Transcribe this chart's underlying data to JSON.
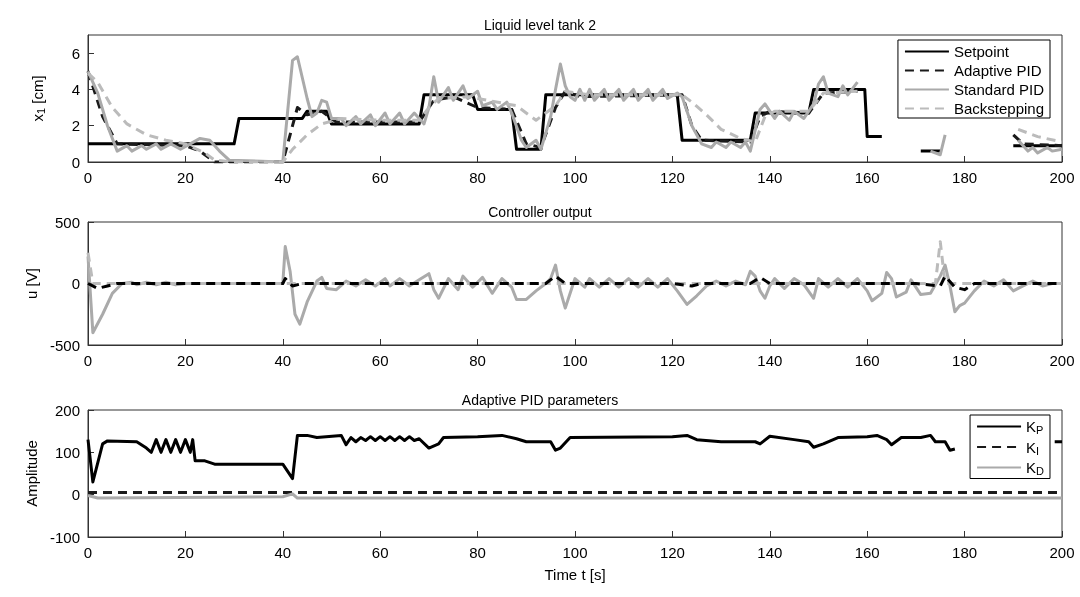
{
  "chart_data": [
    {
      "type": "line",
      "title": "Liquid level tank 2",
      "ylabel": "x$_{1}$ [cm]",
      "xlim": [
        0,
        200
      ],
      "xticks": [
        0,
        20,
        40,
        60,
        80,
        100,
        120,
        140,
        160,
        180,
        200
      ],
      "ylim": [
        0,
        7
      ],
      "yticks": [
        0,
        2,
        4,
        6
      ],
      "legend": "top right",
      "marker": "none",
      "series": [
        {
          "name": "Setpoint",
          "color": "#000000",
          "line_style": "solid",
          "x": [
            0,
            30,
            31,
            44,
            45,
            49,
            50,
            68,
            69,
            79,
            80,
            87,
            88,
            93,
            94,
            121,
            122,
            136,
            137,
            148,
            149,
            159.5,
            160,
            163,
            164,
            170,
            171,
            175,
            176,
            189,
            190,
            200
          ],
          "values": [
            1,
            1,
            2.4,
            2.4,
            2.8,
            2.8,
            2.1,
            2.1,
            3.7,
            3.7,
            2.9,
            2.9,
            0.7,
            0.7,
            3.7,
            3.7,
            1.2,
            1.2,
            2.7,
            2.7,
            4,
            4,
            1.4,
            1.4,
            null,
            null,
            0.6,
            0.6,
            null,
            null,
            0.9,
            0.9
          ]
        },
        {
          "name": "Adaptive PID",
          "color": "#1a1a1a",
          "line_style": "dashed",
          "x": [
            0,
            3,
            6,
            20,
            23,
            26,
            40,
            42,
            43,
            45,
            48,
            51,
            68,
            71,
            75,
            80,
            87,
            90,
            93,
            96,
            98,
            101,
            122,
            124,
            126,
            136,
            138,
            140,
            148,
            151,
            158,
            159,
            190,
            192,
            200
          ],
          "values": [
            5,
            2.5,
            1,
            0.9,
            0.6,
            0,
            0,
            2,
            3,
            2.6,
            2.8,
            2.2,
            2.2,
            3.4,
            3.6,
            3,
            2.9,
            1,
            0.8,
            3,
            3.9,
            3.6,
            3.7,
            2,
            1.2,
            1.1,
            2.5,
            2.8,
            2.7,
            3.8,
            3.9,
            null,
            1.5,
            1,
            0.9
          ]
        },
        {
          "name": "Standard PID",
          "color": "#aaaaaa",
          "line_style": "solid",
          "x": [
            0,
            2,
            4,
            6,
            8,
            9,
            11,
            12,
            14,
            15,
            17,
            19,
            21,
            23,
            25,
            27,
            29,
            40,
            42,
            43,
            45,
            46,
            47,
            48,
            49,
            50,
            52,
            53,
            55,
            56,
            58,
            59,
            61,
            62,
            64,
            65,
            67,
            69,
            70,
            71,
            72,
            74,
            75,
            77,
            78,
            80,
            81,
            83,
            84,
            86,
            87,
            89,
            90,
            92,
            93,
            95,
            96,
            97,
            98,
            99,
            100,
            101,
            102,
            103,
            104,
            106,
            107,
            109,
            110,
            112,
            113,
            115,
            116,
            118,
            119,
            121,
            122,
            124,
            126,
            128,
            129,
            131,
            132,
            134,
            135,
            136,
            138,
            139,
            141,
            142,
            144,
            145,
            147,
            149,
            150,
            151,
            152,
            154,
            155,
            156,
            158,
            159,
            173,
            175,
            176,
            177,
            191,
            193,
            194,
            195,
            197,
            198,
            200
          ],
          "values": [
            5,
            3.8,
            2,
            0.6,
            0.9,
            0.6,
            0.9,
            0.7,
            1,
            0.7,
            1,
            0.7,
            1,
            1.3,
            1.2,
            0.6,
            0.1,
            0,
            5.6,
            5.8,
            3.5,
            2.5,
            2.7,
            3.4,
            3.3,
            2.4,
            2.4,
            2,
            2.5,
            2.1,
            2.6,
            2,
            2.7,
            2.1,
            2.7,
            2.1,
            2.7,
            2.1,
            3,
            4.7,
            3.3,
            4.1,
            3.4,
            4.2,
            3.5,
            3.9,
            3.1,
            3.3,
            2.9,
            3.3,
            2.7,
            1.2,
            0.8,
            1.2,
            0.7,
            2.5,
            4,
            5.4,
            4.2,
            3.6,
            3.4,
            4,
            3.4,
            4,
            3.4,
            4,
            3.4,
            4,
            3.4,
            4,
            3.4,
            4,
            3.4,
            4,
            3.5,
            3.8,
            3.6,
            2,
            1,
            0.8,
            1.1,
            0.8,
            1.1,
            0.8,
            1.1,
            0.6,
            2.9,
            3.2,
            2.4,
            2.8,
            2.3,
            2.8,
            2.4,
            3.2,
            4.3,
            4.7,
            3.8,
            3.6,
            4.2,
            3.7,
            4.4,
            null,
            0.6,
            0.4,
            1.5,
            null,
            1.2,
            0.6,
            0.8,
            0.5,
            0.8,
            0.6,
            0.7
          ]
        },
        {
          "name": "Backstepping",
          "color": "#bbbbbb",
          "line_style": "dashed",
          "x": [
            0,
            2,
            5,
            8,
            12,
            16,
            20,
            24,
            26,
            30,
            40,
            42,
            45,
            48,
            52,
            60,
            68,
            70,
            72,
            78,
            82,
            88,
            92,
            96,
            98,
            103,
            122,
            124,
            127,
            130,
            134,
            137,
            139,
            141,
            148,
            151,
            158,
            159,
            191,
            195,
            200
          ],
          "values": [
            4.9,
            4.4,
            3,
            2.1,
            1.5,
            1.2,
            1,
            0.5,
            0.1,
            0,
            0,
            0.7,
            1.5,
            2.1,
            2.4,
            2.3,
            2.3,
            3,
            3.5,
            3.6,
            3.4,
            3.1,
            2.3,
            3.1,
            3.9,
            3.7,
            3.7,
            3.3,
            2.6,
            1.8,
            1.3,
            1.1,
            2.5,
            2.8,
            2.8,
            3.8,
            3.9,
            null,
            1.8,
            1.4,
            1.1
          ]
        }
      ]
    },
    {
      "type": "line",
      "title": "Controller output",
      "ylabel": "u [V]",
      "xlim": [
        0,
        200
      ],
      "xticks": [
        0,
        20,
        40,
        60,
        80,
        100,
        120,
        140,
        160,
        180,
        200
      ],
      "ylim": [
        -500,
        500
      ],
      "yticks": [
        -500,
        0,
        500
      ],
      "marker": "none",
      "series": [
        {
          "color": "#aaaaaa",
          "line_style": "solid",
          "x": [
            0,
            1,
            3,
            5,
            7,
            9,
            10,
            12,
            14,
            16,
            18,
            20,
            40,
            40.5,
            41.5,
            42.5,
            43.5,
            45,
            47,
            48,
            49,
            51,
            53,
            55,
            57,
            59,
            61,
            62,
            64,
            66,
            68,
            70,
            71,
            72,
            74,
            76,
            77,
            79,
            81,
            83,
            85,
            87,
            88,
            90,
            92,
            94,
            95,
            96,
            97,
            98,
            99,
            100,
            102,
            103,
            105,
            107,
            109,
            111,
            113,
            115,
            117,
            119,
            121,
            123,
            125,
            127,
            129,
            131,
            133,
            135,
            136,
            137,
            138,
            139,
            140,
            141,
            143,
            145,
            147,
            149,
            150,
            152,
            154,
            156,
            158,
            160,
            161,
            163,
            164,
            165,
            166,
            168,
            169,
            171,
            173,
            175,
            176,
            177,
            178,
            179,
            180,
            182,
            184,
            186,
            188,
            190,
            192,
            194,
            196,
            198,
            200
          ],
          "values": [
            220,
            -400,
            -250,
            -80,
            0,
            10,
            -10,
            10,
            -10,
            10,
            -10,
            0,
            0,
            300,
            100,
            -250,
            -330,
            -150,
            20,
            50,
            -40,
            -50,
            20,
            -20,
            30,
            -20,
            40,
            -20,
            40,
            -20,
            30,
            80,
            -50,
            -120,
            40,
            -50,
            60,
            -30,
            50,
            -80,
            40,
            -30,
            -130,
            -130,
            -60,
            0,
            40,
            150,
            -60,
            -200,
            -80,
            40,
            -30,
            40,
            -30,
            40,
            -30,
            40,
            -30,
            40,
            -30,
            40,
            -60,
            -170,
            -100,
            -20,
            20,
            -20,
            20,
            -10,
            100,
            60,
            -60,
            -120,
            -20,
            40,
            -40,
            40,
            -10,
            -120,
            40,
            -30,
            40,
            -30,
            40,
            -60,
            -140,
            -80,
            90,
            40,
            -110,
            -70,
            30,
            -90,
            -80,
            60,
            150,
            -20,
            -230,
            -180,
            -160,
            -60,
            20,
            -20,
            30,
            -60,
            -20,
            20,
            -20,
            0,
            0
          ]
        },
        {
          "color": "#bbbbbb",
          "line_style": "dashed",
          "x": [
            0,
            1,
            40,
            174,
            175,
            176,
            200
          ],
          "values": [
            250,
            0,
            0,
            0,
            340,
            0,
            0
          ]
        },
        {
          "color": "#000000",
          "line_style": "dashed",
          "x": [
            0,
            2,
            4,
            6,
            40,
            40.5,
            42,
            44,
            60,
            94,
            96,
            98,
            120,
            124,
            126,
            136,
            138,
            140,
            170,
            175,
            176,
            178,
            180,
            182,
            200
          ],
          "values": [
            0,
            -40,
            -20,
            0,
            0,
            40,
            -20,
            0,
            0,
            0,
            60,
            0,
            0,
            -20,
            0,
            0,
            50,
            0,
            0,
            -20,
            60,
            -30,
            -50,
            0,
            0
          ]
        }
      ]
    },
    {
      "type": "line",
      "title": "Adaptive PID parameters",
      "xlabel": "Time t [s]",
      "ylabel": "Amplitude",
      "xlim": [
        0,
        200
      ],
      "xticks": [
        0,
        20,
        40,
        60,
        80,
        100,
        120,
        140,
        160,
        180,
        200
      ],
      "ylim": [
        -100,
        200
      ],
      "yticks": [
        -100,
        0,
        100,
        200
      ],
      "legend": "top right",
      "marker": "none",
      "series": [
        {
          "name": "K$_{P}$",
          "color": "#000000",
          "line_style": "solid",
          "x": [
            0,
            1,
            3,
            4,
            10,
            12,
            13,
            14,
            15,
            16,
            17,
            18,
            19,
            20,
            21,
            21.5,
            22,
            24,
            26,
            40,
            42,
            43,
            45,
            47,
            52,
            53,
            54,
            55,
            56,
            57,
            58,
            59,
            60,
            61,
            62,
            63,
            64,
            65,
            66,
            67,
            68,
            70,
            72,
            73,
            80,
            85,
            88,
            90,
            95,
            96,
            97,
            99,
            120,
            123,
            125,
            130,
            137,
            138,
            140,
            145,
            148,
            149,
            151,
            154,
            160,
            162,
            164,
            165,
            167,
            171,
            173,
            174,
            176,
            177,
            178,
            179,
            197,
            198.5,
            200
          ],
          "values": [
            130,
            30,
            120,
            127,
            125,
            110,
            100,
            130,
            100,
            130,
            100,
            130,
            100,
            130,
            100,
            130,
            80,
            80,
            72,
            72,
            38,
            140,
            140,
            135,
            140,
            118,
            135,
            125,
            135,
            128,
            137,
            128,
            137,
            128,
            137,
            128,
            137,
            128,
            137,
            128,
            132,
            110,
            120,
            135,
            137,
            140,
            132,
            125,
            125,
            105,
            110,
            135,
            137,
            140,
            130,
            125,
            125,
            120,
            138,
            130,
            125,
            112,
            120,
            135,
            137,
            140,
            130,
            118,
            135,
            135,
            140,
            125,
            125,
            105,
            108,
            null,
            null,
            125,
            125
          ]
        },
        {
          "name": "K$_{I}$",
          "color": "#1a1a1a",
          "line_style": "dashed",
          "x": [
            0,
            200
          ],
          "values": [
            5,
            5
          ]
        },
        {
          "name": "K$_{D}$",
          "color": "#aaaaaa",
          "line_style": "solid",
          "x": [
            0,
            2,
            40,
            42,
            43,
            200
          ],
          "values": [
            -2,
            -8,
            -5,
            2,
            -8,
            -8
          ]
        }
      ]
    }
  ]
}
